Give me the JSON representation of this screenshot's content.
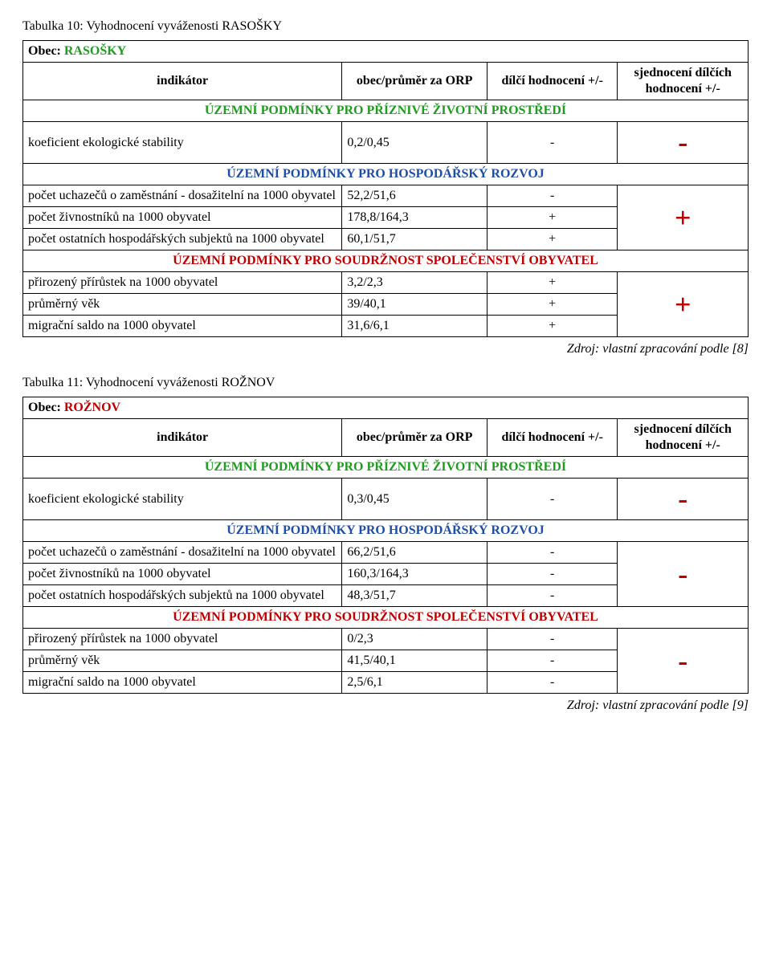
{
  "tables": [
    {
      "caption": "Tabulka 10: Vyhodnocení vyváženosti RASOŠKY",
      "obec_label": "Obec:",
      "obec_name": "RASOŠKY",
      "obec_color": "#1f9b1f",
      "header": {
        "c1": "indikátor",
        "c2": "obec/průměr za ORP",
        "c3": "dílčí hodnocení +/-",
        "c4": "sjednocení dílčích hodnocení +/-"
      },
      "sections": [
        {
          "title": "ÚZEMNÍ PODMÍNKY PRO PŘÍZNIVÉ ŽIVOTNÍ PROSTŘEDÍ",
          "color": "#1f9b1f",
          "items": [
            {
              "label": "koeficient ekologické stability",
              "value": "0,2/0,45",
              "mark": "-"
            }
          ],
          "symbol": "-",
          "symbol_color": "#c00000"
        },
        {
          "title": "ÚZEMNÍ PODMÍNKY PRO HOSPODÁŘSKÝ ROZVOJ",
          "color": "#1f4ea5",
          "items": [
            {
              "label": "počet uchazečů o zaměstnání - dosažitelní na 1000 obyvatel",
              "value": "52,2/51,6",
              "mark": "-"
            },
            {
              "label": "počet živnostníků na 1000 obyvatel",
              "value": "178,8/164,3",
              "mark": "+"
            },
            {
              "label": "počet ostatních hospodářských subjektů na 1000 obyvatel",
              "value": "60,1/51,7",
              "mark": "+"
            }
          ],
          "symbol": "+",
          "symbol_color": "#c00000"
        },
        {
          "title": "ÚZEMNÍ PODMÍNKY PRO SOUDRŽNOST SPOLEČENSTVÍ OBYVATEL",
          "color": "#c00000",
          "items": [
            {
              "label": "přirozený přírůstek na 1000 obyvatel",
              "value": "3,2/2,3",
              "mark": "+"
            },
            {
              "label": "průměrný věk",
              "value": "39/40,1",
              "mark": "+"
            },
            {
              "label": "migrační saldo na 1000 obyvatel",
              "value": "31,6/6,1",
              "mark": "+"
            }
          ],
          "symbol": "+",
          "symbol_color": "#c00000"
        }
      ],
      "source": "Zdroj: vlastní zpracování podle [8]"
    },
    {
      "caption": "Tabulka 11: Vyhodnocení vyváženosti ROŽNOV",
      "obec_label": "Obec:",
      "obec_name": "ROŽNOV",
      "obec_color": "#c00000",
      "header": {
        "c1": "indikátor",
        "c2": "obec/průměr za ORP",
        "c3": "dílčí hodnocení +/-",
        "c4": "sjednocení dílčích hodnocení +/-"
      },
      "sections": [
        {
          "title": "ÚZEMNÍ PODMÍNKY PRO PŘÍZNIVÉ ŽIVOTNÍ PROSTŘEDÍ",
          "color": "#1f9b1f",
          "items": [
            {
              "label": "koeficient ekologické stability",
              "value": "0,3/0,45",
              "mark": "-"
            }
          ],
          "symbol": "-",
          "symbol_color": "#c00000"
        },
        {
          "title": "ÚZEMNÍ PODMÍNKY PRO HOSPODÁŘSKÝ ROZVOJ",
          "color": "#1f4ea5",
          "items": [
            {
              "label": "počet uchazečů o zaměstnání - dosažitelní na 1000 obyvatel",
              "value": "66,2/51,6",
              "mark": "-"
            },
            {
              "label": "počet živnostníků na 1000 obyvatel",
              "value": "160,3/164,3",
              "mark": "-"
            },
            {
              "label": "počet ostatních hospodářských subjektů na 1000 obyvatel",
              "value": "48,3/51,7",
              "mark": "-"
            }
          ],
          "symbol": "-",
          "symbol_color": "#c00000"
        },
        {
          "title": "ÚZEMNÍ PODMÍNKY PRO SOUDRŽNOST SPOLEČENSTVÍ OBYVATEL",
          "color": "#c00000",
          "items": [
            {
              "label": "přirozený přírůstek na 1000 obyvatel",
              "value": "0/2,3",
              "mark": "-"
            },
            {
              "label": "průměrný věk",
              "value": "41,5/40,1",
              "mark": "-"
            },
            {
              "label": "migrační saldo na 1000 obyvatel",
              "value": "2,5/6,1",
              "mark": "-"
            }
          ],
          "symbol": "-",
          "symbol_color": "#c00000"
        }
      ],
      "source": "Zdroj: vlastní zpracování podle [9]"
    }
  ]
}
